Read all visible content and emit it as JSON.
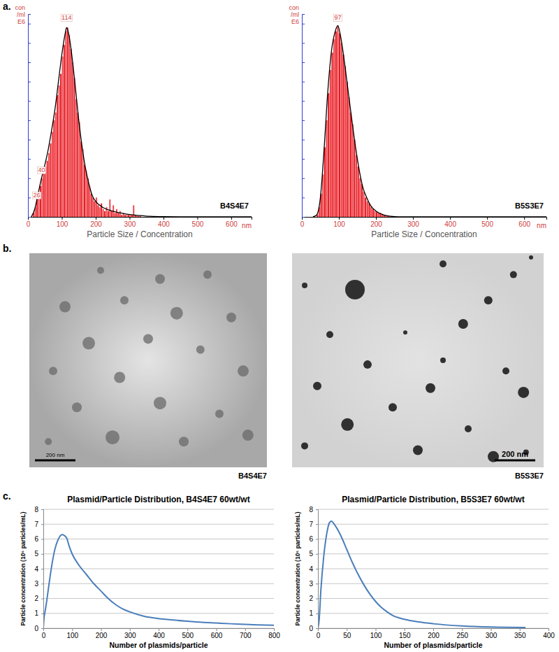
{
  "chart_data": [
    {
      "type": "histogram",
      "panel": "a.",
      "caption": "B4S4E7",
      "color": "#e8141c",
      "bins": [
        15,
        20,
        25,
        30,
        35,
        40,
        45,
        50,
        55,
        60,
        65,
        70,
        75,
        80,
        85,
        90,
        95,
        100,
        105,
        110,
        115,
        120,
        125,
        130,
        135,
        140,
        145,
        150,
        155,
        160,
        165,
        170,
        175,
        180,
        185,
        190,
        195,
        200,
        205,
        210,
        215,
        220,
        225,
        230,
        235,
        240,
        245,
        250,
        255,
        260,
        265,
        270,
        275,
        280,
        285,
        290,
        295,
        300,
        305,
        310,
        315,
        320,
        325,
        330,
        335
      ],
      "counts": [
        0.2,
        0.5,
        1.0,
        1.2,
        1.6,
        2.0,
        2.4,
        2.6,
        2.9,
        3.3,
        3.8,
        4.4,
        5.0,
        5.4,
        6.3,
        6.8,
        7.4,
        8.3,
        8.9,
        9.6,
        9.8,
        9.4,
        8.7,
        8.0,
        7.2,
        6.1,
        5.4,
        4.9,
        3.9,
        3.5,
        2.7,
        2.4,
        2.0,
        1.6,
        1.2,
        1.0,
        0.8,
        1.0,
        0.6,
        0.5,
        0.7,
        0.4,
        0.3,
        0.5,
        0.3,
        0.9,
        0.3,
        0.6,
        0.2,
        0.4,
        0.2,
        0.3,
        0.1,
        0.2,
        0.1,
        0.1,
        0.1,
        0.1,
        0.1,
        0.6,
        0.1,
        0.05,
        0.05,
        0.05
      ],
      "fit": {
        "type": "line",
        "color": "#000000",
        "x": [
          10,
          20,
          30,
          40,
          50,
          60,
          70,
          80,
          90,
          100,
          110,
          114,
          120,
          130,
          140,
          150,
          160,
          170,
          180,
          190,
          200,
          220,
          240,
          260,
          280,
          300,
          330,
          360,
          400,
          500,
          660
        ],
        "values": [
          0,
          0.4,
          1.2,
          2.0,
          2.7,
          3.5,
          4.5,
          5.6,
          7.0,
          8.4,
          9.5,
          9.8,
          9.5,
          8.3,
          6.7,
          5.0,
          3.6,
          2.5,
          1.7,
          1.1,
          0.8,
          0.5,
          0.35,
          0.25,
          0.18,
          0.12,
          0.07,
          0.03,
          0.01,
          0,
          0
        ]
      },
      "xlim": [
        0,
        660
      ],
      "xticks": [
        0,
        100,
        200,
        300,
        400,
        500,
        600
      ],
      "ylim": [
        0,
        10.5
      ],
      "yticks": [
        0,
        1,
        2,
        3,
        4,
        5,
        6,
        7,
        8,
        9,
        10
      ],
      "tick_labels": "x",
      "xlabel": "Particle Size / Concentration",
      "x_unit": "nm",
      "ylabel": [
        "con",
        "/ml",
        "E6"
      ],
      "annotations": [
        {
          "text": "114",
          "x": 114,
          "y": 10.2
        },
        {
          "text": "40",
          "x": 40,
          "y": 2.3
        },
        {
          "text": "26",
          "x": 26,
          "y": 1.0
        }
      ]
    },
    {
      "type": "histogram",
      "caption": "B5S3E7",
      "color": "#e8141c",
      "bins": [
        40,
        45,
        50,
        55,
        60,
        65,
        70,
        75,
        80,
        85,
        90,
        95,
        100,
        105,
        110,
        115,
        120,
        125,
        130,
        135,
        140,
        145,
        150,
        155,
        160,
        165,
        170,
        175,
        180,
        185,
        190,
        195,
        200,
        205,
        210,
        215,
        220,
        225,
        230,
        235,
        240
      ],
      "counts": [
        0.1,
        0.5,
        1.2,
        2.2,
        3.6,
        5.0,
        6.4,
        7.6,
        8.5,
        9.2,
        9.6,
        9.9,
        9.5,
        9.0,
        8.4,
        7.8,
        7.0,
        6.2,
        5.4,
        4.8,
        4.0,
        3.2,
        2.6,
        2.0,
        1.7,
        1.3,
        1.0,
        0.8,
        0.7,
        0.5,
        0.4,
        0.3,
        0.25,
        0.2,
        0.2,
        0.15,
        0.1,
        0.08,
        0.05,
        0.03
      ],
      "fit": {
        "type": "line",
        "color": "#000000",
        "x": [
          30,
          40,
          50,
          60,
          70,
          80,
          90,
          97,
          105,
          115,
          125,
          135,
          145,
          155,
          165,
          175,
          185,
          200,
          220,
          240,
          260,
          400,
          660
        ],
        "values": [
          0,
          0.1,
          1.0,
          3.5,
          6.5,
          8.6,
          9.6,
          9.9,
          9.3,
          8.0,
          6.5,
          5.0,
          3.6,
          2.4,
          1.5,
          1.0,
          0.6,
          0.3,
          0.1,
          0.03,
          0,
          0,
          0
        ]
      },
      "xlim": [
        0,
        660
      ],
      "xticks": [
        0,
        100,
        200,
        300,
        400,
        500,
        600
      ],
      "ylim": [
        0,
        10.5
      ],
      "yticks": [
        0,
        1,
        2,
        3,
        4,
        5,
        6,
        7,
        8,
        9,
        10
      ],
      "tick_labels": "x",
      "xlabel": "Particle Size / Concentration",
      "x_unit": "nm",
      "ylabel": [
        "con",
        "/ml",
        "E6"
      ],
      "annotations": [
        {
          "text": "97",
          "x": 97,
          "y": 10.2
        }
      ]
    },
    {
      "type": "image",
      "panel": "b.",
      "caption": "B4S4E7",
      "scale_bar": "200 nm"
    },
    {
      "type": "image",
      "caption": "B5S3E7",
      "scale_bar": "200 nm"
    },
    {
      "type": "line",
      "panel": "c.",
      "title": "Plasmid/Particle Distribution, B4S4E7 60wt/wt",
      "xlabel": "Number of plasmids/particle",
      "ylabel": "Particle concentration (10⁶ particles/mL)",
      "color": "#4a7ebb",
      "grid": true,
      "x": [
        0,
        3,
        5,
        10,
        20,
        30,
        40,
        50,
        65,
        80,
        90,
        100,
        125,
        150,
        175,
        200,
        225,
        250,
        275,
        300,
        350,
        400,
        450,
        500,
        550,
        600,
        650,
        700,
        750,
        800
      ],
      "values": [
        0,
        0.8,
        1.0,
        1.6,
        3.0,
        4.3,
        5.3,
        5.9,
        6.3,
        6.1,
        5.5,
        5.0,
        4.2,
        3.6,
        3.0,
        2.5,
        2.0,
        1.6,
        1.3,
        1.1,
        0.8,
        0.65,
        0.55,
        0.47,
        0.4,
        0.35,
        0.3,
        0.26,
        0.22,
        0.2
      ],
      "xlim": [
        0,
        800
      ],
      "xticks": [
        0,
        100,
        200,
        300,
        400,
        500,
        600,
        700,
        800
      ],
      "ylim": [
        0,
        8
      ],
      "yticks": [
        0,
        1,
        2,
        3,
        4,
        5,
        6,
        7,
        8
      ]
    },
    {
      "type": "line",
      "title": "Plasmid/Particle Distribution, B5S3E7 60wt/wt",
      "xlabel": "Number of plasmids/particle",
      "ylabel": "Particle concentration (10⁶ particles/mL)",
      "color": "#4a7ebb",
      "grid": true,
      "x": [
        0,
        2,
        5,
        10,
        15,
        20,
        23,
        30,
        40,
        50,
        60,
        70,
        80,
        90,
        100,
        110,
        120,
        130,
        150,
        175,
        200,
        250,
        300,
        360
      ],
      "values": [
        0,
        0.5,
        2.5,
        4.8,
        6.3,
        7.1,
        7.2,
        6.9,
        6.2,
        5.3,
        4.4,
        3.6,
        2.9,
        2.3,
        1.8,
        1.4,
        1.1,
        0.85,
        0.6,
        0.42,
        0.3,
        0.15,
        0.08,
        0.05
      ],
      "xlim": [
        0,
        400
      ],
      "xticks": [
        0,
        50,
        100,
        150,
        200,
        250,
        300,
        350,
        400
      ],
      "ylim": [
        0,
        8
      ],
      "yticks": [
        0,
        1,
        2,
        3,
        4,
        5,
        6,
        7,
        8
      ]
    }
  ]
}
